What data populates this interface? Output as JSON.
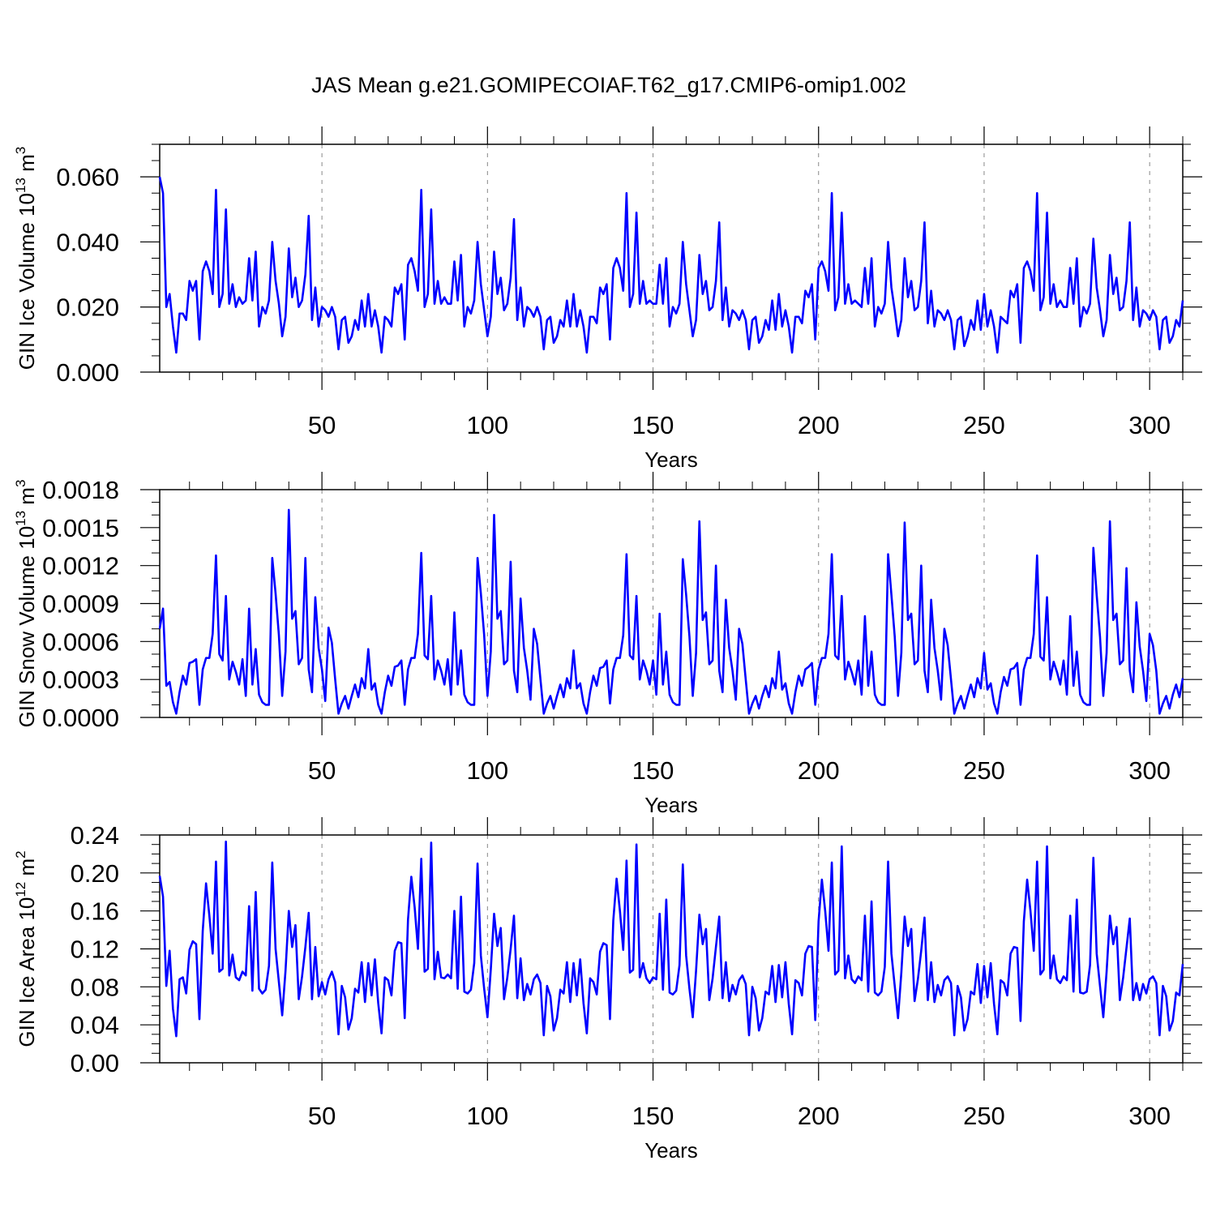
{
  "title": "JAS Mean g.e21.GOMIPECOIAF.T62_g17.CMIP6-omip1.002",
  "line_color": "#0000ff",
  "chart_data": [
    {
      "type": "line",
      "ylabel": {
        "main": "GIN Ice Volume 10",
        "sup": "13",
        "unit": " m",
        "unit_sup": "3"
      },
      "xlabel": "Years",
      "xlim": [
        1,
        310
      ],
      "ylim": [
        0,
        0.07
      ],
      "xticks": [
        50,
        100,
        150,
        200,
        250,
        300
      ],
      "xtick_labels": [
        "50",
        "100",
        "150",
        "200",
        "250",
        "300"
      ],
      "yticks": [
        0,
        0.02,
        0.04,
        0.06
      ],
      "ytick_labels": [
        "0.000",
        "0.020",
        "0.040",
        "0.060"
      ],
      "xminor": 10,
      "yminor": 0.005,
      "x_start": 1,
      "values": [
        0.06,
        0.055,
        0.02,
        0.024,
        0.014,
        0.006,
        0.018,
        0.018,
        0.016,
        0.028,
        0.025,
        0.028,
        0.01,
        0.031,
        0.034,
        0.031,
        0.024,
        0.056,
        0.02,
        0.024,
        0.05,
        0.021,
        0.027,
        0.02,
        0.023,
        0.021,
        0.022,
        0.035,
        0.022,
        0.037,
        0.014,
        0.02,
        0.018,
        0.022,
        0.04,
        0.028,
        0.021,
        0.011,
        0.017,
        0.038,
        0.023,
        0.029,
        0.02,
        0.022,
        0.03,
        0.048,
        0.016,
        0.026,
        0.014,
        0.02,
        0.019,
        0.017,
        0.02,
        0.017,
        0.007,
        0.016,
        0.017,
        0.009,
        0.011,
        0.016,
        0.013,
        0.022,
        0.014,
        0.024,
        0.014,
        0.019,
        0.014,
        0.006,
        0.017,
        0.016,
        0.014,
        0.026,
        0.024,
        0.027,
        0.01,
        0.033,
        0.035,
        0.031,
        0.025,
        0.056,
        0.02,
        0.024,
        0.05,
        0.021,
        0.028,
        0.021,
        0.023,
        0.021,
        0.021,
        0.034,
        0.022,
        0.036,
        0.014,
        0.02,
        0.018,
        0.022,
        0.04,
        0.027,
        0.019,
        0.011,
        0.017,
        0.037,
        0.024,
        0.029,
        0.019,
        0.021,
        0.029,
        0.047,
        0.016,
        0.026,
        0.014,
        0.02,
        0.019,
        0.017,
        0.02,
        0.017,
        0.007,
        0.016,
        0.017,
        0.009,
        0.011,
        0.016,
        0.014,
        0.022,
        0.014,
        0.024,
        0.014,
        0.019,
        0.014,
        0.006,
        0.017,
        0.017,
        0.015,
        0.026,
        0.024,
        0.027,
        0.01,
        0.032,
        0.035,
        0.032,
        0.025,
        0.055,
        0.02,
        0.024,
        0.049,
        0.021,
        0.028,
        0.021,
        0.022,
        0.021,
        0.021,
        0.033,
        0.021,
        0.035,
        0.014,
        0.02,
        0.018,
        0.021,
        0.04,
        0.027,
        0.019,
        0.011,
        0.016,
        0.036,
        0.024,
        0.028,
        0.019,
        0.02,
        0.028,
        0.046,
        0.016,
        0.026,
        0.014,
        0.019,
        0.018,
        0.016,
        0.019,
        0.016,
        0.007,
        0.016,
        0.017,
        0.009,
        0.011,
        0.016,
        0.013,
        0.022,
        0.013,
        0.024,
        0.014,
        0.019,
        0.014,
        0.006,
        0.017,
        0.017,
        0.015,
        0.025,
        0.023,
        0.027,
        0.01,
        0.032,
        0.034,
        0.031,
        0.025,
        0.055,
        0.019,
        0.023,
        0.049,
        0.021,
        0.027,
        0.021,
        0.022,
        0.021,
        0.02,
        0.032,
        0.021,
        0.035,
        0.014,
        0.02,
        0.018,
        0.021,
        0.04,
        0.026,
        0.019,
        0.011,
        0.016,
        0.035,
        0.023,
        0.028,
        0.019,
        0.02,
        0.028,
        0.046,
        0.015,
        0.025,
        0.014,
        0.019,
        0.018,
        0.016,
        0.019,
        0.016,
        0.007,
        0.016,
        0.017,
        0.008,
        0.011,
        0.016,
        0.013,
        0.022,
        0.013,
        0.024,
        0.014,
        0.019,
        0.014,
        0.006,
        0.017,
        0.016,
        0.015,
        0.025,
        0.023,
        0.027,
        0.009,
        0.032,
        0.034,
        0.031,
        0.025,
        0.055,
        0.019,
        0.023,
        0.049,
        0.021,
        0.027,
        0.02,
        0.022,
        0.02,
        0.02,
        0.032,
        0.021,
        0.035,
        0.014,
        0.02,
        0.018,
        0.021,
        0.041,
        0.026,
        0.019,
        0.011,
        0.016,
        0.036,
        0.024,
        0.029,
        0.019,
        0.02,
        0.028,
        0.046,
        0.016,
        0.026,
        0.014,
        0.019,
        0.018,
        0.016,
        0.019,
        0.017,
        0.007,
        0.016,
        0.017,
        0.009,
        0.011,
        0.016,
        0.014,
        0.022
      ]
    },
    {
      "type": "line",
      "ylabel": {
        "main": "GIN Snow Volume 10",
        "sup": "13",
        "unit": " m",
        "unit_sup": "3"
      },
      "xlabel": "Years",
      "xlim": [
        1,
        310
      ],
      "ylim": [
        0,
        0.0018
      ],
      "xticks": [
        50,
        100,
        150,
        200,
        250,
        300
      ],
      "xtick_labels": [
        "50",
        "100",
        "150",
        "200",
        "250",
        "300"
      ],
      "yticks": [
        0,
        0.0003,
        0.0006,
        0.0009,
        0.0012,
        0.0015,
        0.0018
      ],
      "ytick_labels": [
        "0.0000",
        "0.0003",
        "0.0006",
        "0.0009",
        "0.0012",
        "0.0015",
        "0.0018"
      ],
      "xminor": 10,
      "yminor": 0.0001,
      "x_start": 1,
      "values": [
        0.0007,
        0.00086,
        0.00025,
        0.00028,
        0.00012,
        3e-05,
        0.0002,
        0.00033,
        0.00026,
        0.00043,
        0.00044,
        0.00046,
        0.0001,
        0.00038,
        0.00047,
        0.00047,
        0.00066,
        0.00128,
        0.0005,
        0.00045,
        0.00096,
        0.0003,
        0.00044,
        0.00036,
        0.00026,
        0.00046,
        0.00017,
        0.00086,
        0.00026,
        0.00054,
        0.00018,
        0.00012,
        0.0001,
        0.0001,
        0.00126,
        0.00098,
        0.00065,
        0.00017,
        0.00052,
        0.00164,
        0.00078,
        0.00084,
        0.00042,
        0.00047,
        0.00126,
        0.00038,
        0.0002,
        0.00095,
        0.00055,
        0.00038,
        0.00013,
        0.00071,
        0.00059,
        0.0003,
        3e-05,
        0.00011,
        0.00017,
        7e-05,
        0.00017,
        0.00026,
        0.00016,
        0.00031,
        0.00023,
        0.00054,
        0.00022,
        0.00027,
        0.0001,
        3e-05,
        0.0002,
        0.00033,
        0.00025,
        0.0004,
        0.00041,
        0.00045,
        0.0001,
        0.00038,
        0.00047,
        0.00047,
        0.00066,
        0.0013,
        0.00049,
        0.00046,
        0.00096,
        0.0003,
        0.00045,
        0.00037,
        0.00026,
        0.00046,
        0.00018,
        0.00083,
        0.00026,
        0.00053,
        0.00018,
        0.00012,
        0.0001,
        0.0001,
        0.00126,
        0.00098,
        0.00065,
        0.00017,
        0.00052,
        0.0016,
        0.00078,
        0.00084,
        0.00042,
        0.00045,
        0.00123,
        0.00037,
        0.0002,
        0.00094,
        0.00055,
        0.00037,
        0.00014,
        0.0007,
        0.00058,
        0.0003,
        3e-05,
        0.00011,
        0.00017,
        7e-05,
        0.00017,
        0.00026,
        0.00016,
        0.00031,
        0.00023,
        0.00053,
        0.00023,
        0.00027,
        0.00011,
        3e-05,
        0.0002,
        0.00033,
        0.00025,
        0.00039,
        0.0004,
        0.00045,
        0.00011,
        0.00038,
        0.00047,
        0.00047,
        0.00065,
        0.00129,
        0.00049,
        0.00046,
        0.00096,
        0.0003,
        0.00045,
        0.00037,
        0.00026,
        0.00045,
        0.00018,
        0.00082,
        0.00026,
        0.00052,
        0.00018,
        0.00012,
        0.0001,
        0.0001,
        0.00125,
        0.00097,
        0.00064,
        0.00017,
        0.00051,
        0.00155,
        0.00077,
        0.00083,
        0.00042,
        0.00045,
        0.0012,
        0.00037,
        0.0002,
        0.00093,
        0.00055,
        0.00037,
        0.00014,
        0.0007,
        0.00058,
        0.0003,
        3e-05,
        0.00011,
        0.00017,
        7e-05,
        0.00017,
        0.00025,
        0.00016,
        0.00031,
        0.00023,
        0.00052,
        0.00022,
        0.00027,
        0.00011,
        3e-05,
        0.0002,
        0.00033,
        0.00025,
        0.00038,
        0.0004,
        0.00043,
        0.0001,
        0.00038,
        0.00047,
        0.00047,
        0.00066,
        0.00129,
        0.00049,
        0.00046,
        0.00096,
        0.0003,
        0.00044,
        0.00036,
        0.00026,
        0.00045,
        0.00018,
        0.0008,
        0.00025,
        0.00052,
        0.00018,
        0.00012,
        0.0001,
        0.0001,
        0.00129,
        0.00097,
        0.00064,
        0.00017,
        0.00051,
        0.00154,
        0.00077,
        0.00082,
        0.00042,
        0.00045,
        0.0012,
        0.00037,
        0.0002,
        0.00093,
        0.00055,
        0.00037,
        0.00014,
        0.0007,
        0.00057,
        0.0003,
        3e-05,
        0.00011,
        0.00017,
        7e-05,
        0.00017,
        0.00026,
        0.00016,
        0.00031,
        0.00023,
        0.00051,
        0.00022,
        0.00027,
        0.00011,
        3e-05,
        0.0002,
        0.00032,
        0.00025,
        0.00038,
        0.00039,
        0.00043,
        0.0001,
        0.00038,
        0.00047,
        0.00047,
        0.00066,
        0.00128,
        0.00048,
        0.00045,
        0.00095,
        0.0003,
        0.00044,
        0.00036,
        0.00026,
        0.00045,
        0.00018,
        0.0008,
        0.00025,
        0.00052,
        0.00018,
        0.00012,
        0.0001,
        0.0001,
        0.00134,
        0.00097,
        0.00064,
        0.00017,
        0.00051,
        0.00155,
        0.00077,
        0.00082,
        0.00042,
        0.00045,
        0.00118,
        0.00037,
        0.0002,
        0.00091,
        0.00056,
        0.00037,
        0.00013,
        0.00066,
        0.00057,
        0.00037,
        3e-05,
        0.00011,
        0.00017,
        7e-05,
        0.00018,
        0.00026,
        0.00016,
        0.00031
      ]
    },
    {
      "type": "line",
      "ylabel": {
        "main": "GIN Ice Area 10",
        "sup": "12",
        "unit": " m",
        "unit_sup": "2"
      },
      "xlabel": "Years",
      "xlim": [
        1,
        310
      ],
      "ylim": [
        0,
        0.24
      ],
      "xticks": [
        50,
        100,
        150,
        200,
        250,
        300
      ],
      "xtick_labels": [
        "50",
        "100",
        "150",
        "200",
        "250",
        "300"
      ],
      "yticks": [
        0,
        0.04,
        0.08,
        0.12,
        0.16,
        0.2,
        0.24
      ],
      "ytick_labels": [
        "0.00",
        "0.04",
        "0.08",
        "0.12",
        "0.16",
        "0.20",
        "0.24"
      ],
      "xminor": 10,
      "yminor": 0.01,
      "x_start": 1,
      "values": [
        0.197,
        0.175,
        0.081,
        0.118,
        0.057,
        0.028,
        0.088,
        0.09,
        0.073,
        0.119,
        0.128,
        0.125,
        0.046,
        0.139,
        0.189,
        0.155,
        0.115,
        0.212,
        0.096,
        0.099,
        0.233,
        0.092,
        0.114,
        0.09,
        0.087,
        0.096,
        0.092,
        0.165,
        0.076,
        0.18,
        0.078,
        0.073,
        0.077,
        0.102,
        0.211,
        0.12,
        0.085,
        0.05,
        0.097,
        0.16,
        0.122,
        0.145,
        0.067,
        0.091,
        0.122,
        0.158,
        0.067,
        0.122,
        0.07,
        0.085,
        0.072,
        0.088,
        0.096,
        0.085,
        0.03,
        0.081,
        0.069,
        0.035,
        0.047,
        0.078,
        0.074,
        0.106,
        0.064,
        0.105,
        0.071,
        0.109,
        0.063,
        0.031,
        0.09,
        0.087,
        0.071,
        0.118,
        0.127,
        0.126,
        0.047,
        0.151,
        0.196,
        0.164,
        0.12,
        0.215,
        0.096,
        0.099,
        0.232,
        0.088,
        0.117,
        0.09,
        0.089,
        0.093,
        0.089,
        0.16,
        0.078,
        0.175,
        0.075,
        0.073,
        0.077,
        0.105,
        0.21,
        0.113,
        0.078,
        0.048,
        0.098,
        0.157,
        0.123,
        0.142,
        0.067,
        0.09,
        0.12,
        0.155,
        0.068,
        0.11,
        0.066,
        0.083,
        0.072,
        0.088,
        0.093,
        0.084,
        0.029,
        0.081,
        0.07,
        0.034,
        0.047,
        0.077,
        0.073,
        0.106,
        0.064,
        0.105,
        0.071,
        0.109,
        0.063,
        0.031,
        0.089,
        0.085,
        0.072,
        0.117,
        0.126,
        0.124,
        0.046,
        0.15,
        0.194,
        0.16,
        0.119,
        0.213,
        0.095,
        0.098,
        0.23,
        0.09,
        0.105,
        0.089,
        0.084,
        0.09,
        0.088,
        0.157,
        0.077,
        0.172,
        0.074,
        0.072,
        0.076,
        0.103,
        0.209,
        0.113,
        0.078,
        0.048,
        0.097,
        0.156,
        0.125,
        0.141,
        0.066,
        0.089,
        0.122,
        0.154,
        0.068,
        0.106,
        0.065,
        0.082,
        0.072,
        0.087,
        0.092,
        0.083,
        0.029,
        0.08,
        0.068,
        0.034,
        0.047,
        0.075,
        0.072,
        0.102,
        0.064,
        0.103,
        0.069,
        0.106,
        0.062,
        0.03,
        0.087,
        0.084,
        0.071,
        0.115,
        0.123,
        0.122,
        0.045,
        0.149,
        0.193,
        0.16,
        0.118,
        0.211,
        0.093,
        0.097,
        0.228,
        0.089,
        0.113,
        0.088,
        0.084,
        0.091,
        0.087,
        0.155,
        0.075,
        0.17,
        0.074,
        0.071,
        0.075,
        0.101,
        0.212,
        0.115,
        0.081,
        0.047,
        0.095,
        0.154,
        0.123,
        0.141,
        0.065,
        0.088,
        0.118,
        0.153,
        0.066,
        0.106,
        0.064,
        0.082,
        0.071,
        0.087,
        0.091,
        0.084,
        0.029,
        0.081,
        0.069,
        0.034,
        0.046,
        0.075,
        0.072,
        0.104,
        0.063,
        0.102,
        0.069,
        0.105,
        0.062,
        0.03,
        0.087,
        0.084,
        0.071,
        0.115,
        0.122,
        0.121,
        0.044,
        0.149,
        0.193,
        0.16,
        0.118,
        0.212,
        0.093,
        0.098,
        0.228,
        0.089,
        0.113,
        0.088,
        0.084,
        0.091,
        0.087,
        0.155,
        0.075,
        0.172,
        0.074,
        0.073,
        0.075,
        0.103,
        0.216,
        0.115,
        0.081,
        0.048,
        0.096,
        0.155,
        0.125,
        0.143,
        0.066,
        0.09,
        0.121,
        0.152,
        0.066,
        0.084,
        0.066,
        0.083,
        0.073,
        0.088,
        0.091,
        0.084,
        0.029,
        0.081,
        0.07,
        0.034,
        0.044,
        0.074,
        0.071,
        0.104
      ]
    }
  ]
}
